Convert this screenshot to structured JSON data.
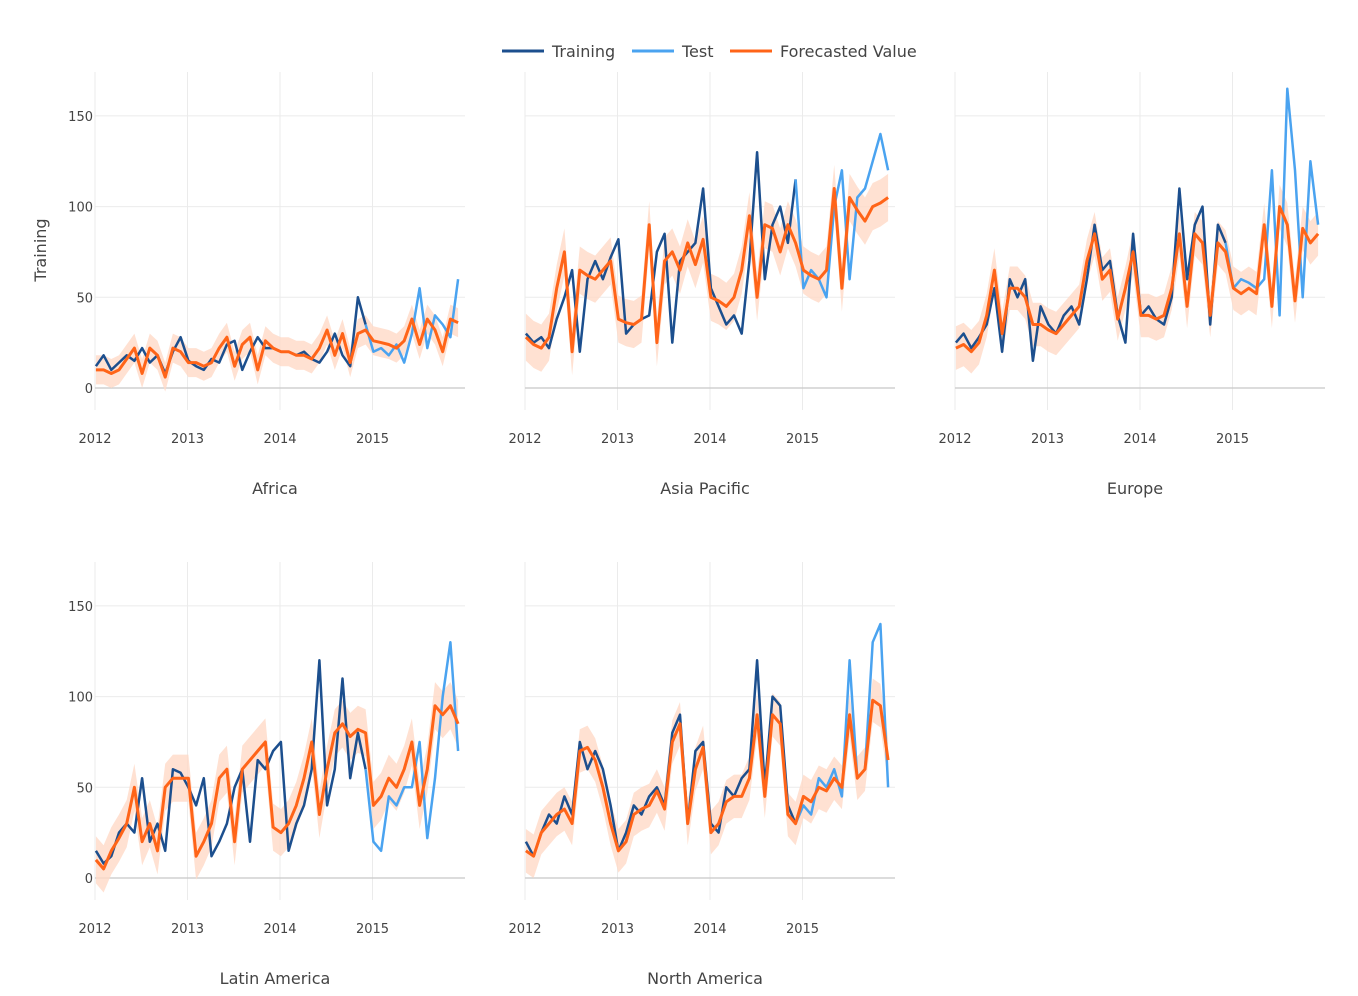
{
  "chart_data": {
    "type": "line",
    "legend": {
      "placement": "top-center",
      "entries": [
        "Training",
        "Test",
        "Forecasted Value"
      ]
    },
    "ylabel": "Training",
    "colors": {
      "training": "#1c4f8e",
      "test": "#4aa3f0",
      "forecast": "#ff6418",
      "interval": "#ffd9c7"
    },
    "grid": true,
    "xticks": [
      "2012",
      "2013",
      "2014",
      "2015"
    ],
    "yticks": [
      "0",
      "50",
      "100",
      "150"
    ],
    "ylim": [
      -12,
      174
    ],
    "xlim": [
      "2012-01",
      "2016-01"
    ],
    "frequency": "monthly",
    "training_months": [
      "2012-01",
      "2014-12"
    ],
    "test_months": [
      "2015-01",
      "2015-12"
    ],
    "panels": [
      {
        "title": "Africa",
        "training": [
          12,
          18,
          10,
          14,
          18,
          15,
          22,
          14,
          18,
          8,
          20,
          28,
          15,
          12,
          10,
          16,
          14,
          24,
          26,
          10,
          20,
          28,
          22,
          22,
          20,
          20,
          18,
          20,
          16,
          14,
          20,
          30,
          18,
          12,
          50,
          35
        ],
        "test": [
          20,
          22,
          18,
          24,
          14,
          30,
          55,
          22,
          40,
          35,
          28,
          60
        ],
        "forecast": [
          10,
          10,
          8,
          10,
          16,
          22,
          8,
          22,
          18,
          6,
          22,
          20,
          14,
          14,
          12,
          14,
          22,
          28,
          12,
          24,
          28,
          10,
          26,
          22,
          20,
          20,
          18,
          18,
          16,
          22,
          32,
          18,
          30,
          14,
          30,
          32,
          26,
          25,
          24,
          22,
          26,
          38,
          24,
          38,
          32,
          20,
          38,
          36
        ],
        "interval_halfwidth": 8
      },
      {
        "title": "Asia Pacific",
        "training": [
          30,
          25,
          28,
          22,
          38,
          50,
          65,
          20,
          60,
          70,
          60,
          72,
          82,
          30,
          35,
          38,
          40,
          75,
          85,
          25,
          70,
          75,
          80,
          110,
          55,
          45,
          35,
          40,
          30,
          70,
          130,
          60,
          90,
          100,
          80,
          115
        ],
        "test": [
          55,
          65,
          60,
          50,
          100,
          120,
          60,
          105,
          110,
          125,
          140,
          120
        ],
        "forecast": [
          28,
          24,
          22,
          28,
          55,
          75,
          20,
          65,
          62,
          60,
          65,
          70,
          38,
          36,
          35,
          38,
          90,
          25,
          70,
          75,
          65,
          80,
          68,
          82,
          50,
          48,
          45,
          50,
          65,
          95,
          50,
          90,
          88,
          75,
          90,
          80,
          65,
          62,
          60,
          65,
          110,
          55,
          105,
          98,
          92,
          100,
          102,
          105
        ],
        "interval_halfwidth": 13
      },
      {
        "title": "Europe",
        "training": [
          25,
          30,
          22,
          28,
          35,
          55,
          20,
          60,
          50,
          60,
          15,
          45,
          35,
          30,
          40,
          45,
          35,
          60,
          90,
          65,
          70,
          40,
          25,
          85,
          40,
          45,
          38,
          35,
          50,
          110,
          60,
          90,
          100,
          35,
          90,
          80
        ],
        "test": [
          55,
          60,
          58,
          55,
          60,
          120,
          40,
          165,
          120,
          50,
          125,
          90
        ],
        "forecast": [
          22,
          24,
          20,
          25,
          40,
          65,
          30,
          55,
          55,
          50,
          35,
          35,
          32,
          30,
          35,
          40,
          45,
          70,
          85,
          60,
          65,
          38,
          55,
          75,
          40,
          40,
          38,
          40,
          55,
          85,
          45,
          85,
          80,
          40,
          80,
          75,
          55,
          52,
          55,
          52,
          90,
          45,
          100,
          90,
          48,
          88,
          80,
          85
        ],
        "interval_halfwidth": 12
      },
      {
        "title": "Latin America",
        "training": [
          15,
          8,
          12,
          25,
          30,
          25,
          55,
          20,
          30,
          15,
          60,
          58,
          50,
          40,
          55,
          12,
          20,
          30,
          50,
          60,
          20,
          65,
          60,
          70,
          75,
          15,
          30,
          40,
          60,
          120,
          40,
          60,
          110,
          55,
          80,
          60
        ],
        "test": [
          20,
          15,
          45,
          40,
          50,
          50,
          75,
          22,
          55,
          100,
          130,
          70
        ],
        "forecast": [
          10,
          5,
          15,
          22,
          30,
          50,
          20,
          30,
          15,
          50,
          55,
          55,
          55,
          12,
          20,
          30,
          55,
          60,
          20,
          60,
          65,
          70,
          75,
          28,
          25,
          30,
          40,
          55,
          75,
          35,
          60,
          80,
          85,
          78,
          82,
          80,
          40,
          45,
          55,
          50,
          60,
          75,
          40,
          60,
          95,
          90,
          95,
          85
        ],
        "interval_halfwidth": 13
      },
      {
        "title": "North America",
        "training": [
          20,
          12,
          25,
          35,
          30,
          45,
          35,
          75,
          60,
          70,
          60,
          40,
          15,
          25,
          40,
          35,
          45,
          50,
          40,
          80,
          90,
          30,
          70,
          75,
          30,
          25,
          50,
          45,
          55,
          60,
          120,
          50,
          100,
          95,
          40,
          30
        ],
        "test": [
          40,
          35,
          55,
          50,
          60,
          45,
          120,
          55,
          60,
          130,
          140,
          50
        ],
        "forecast": [
          15,
          12,
          25,
          30,
          35,
          38,
          30,
          70,
          72,
          65,
          50,
          30,
          15,
          20,
          35,
          38,
          40,
          48,
          38,
          75,
          85,
          30,
          60,
          72,
          25,
          30,
          42,
          45,
          45,
          55,
          90,
          45,
          90,
          85,
          35,
          30,
          45,
          42,
          50,
          48,
          55,
          50,
          90,
          55,
          60,
          98,
          95,
          65
        ],
        "interval_halfwidth": 12
      }
    ]
  }
}
